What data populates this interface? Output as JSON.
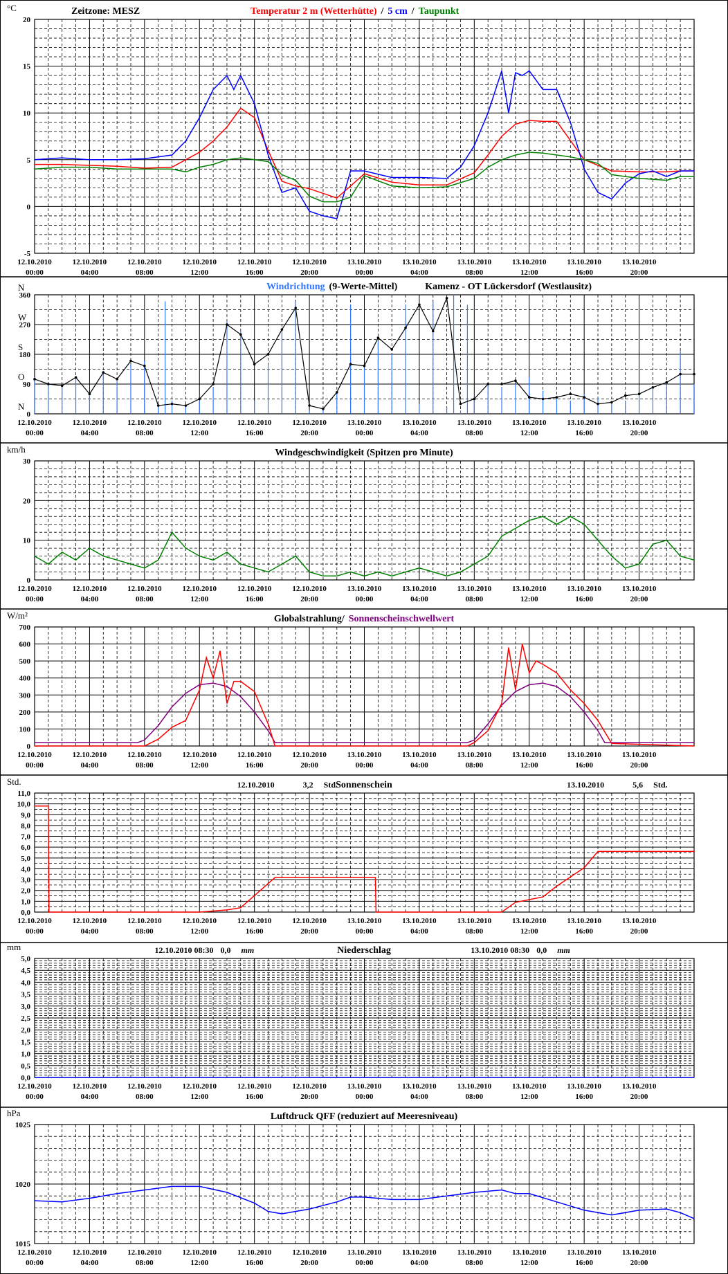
{
  "x_ticks": [
    {
      "date": "12.10.2010",
      "time": "00:00"
    },
    {
      "date": "12.10.2010",
      "time": "04:00"
    },
    {
      "date": "12.10.2010",
      "time": "08:00"
    },
    {
      "date": "12.10.2010",
      "time": "12:00"
    },
    {
      "date": "12.10.2010",
      "time": "16:00"
    },
    {
      "date": "12.10.2010",
      "time": "20:00"
    },
    {
      "date": "13.10.2010",
      "time": "00:00"
    },
    {
      "date": "13.10.2010",
      "time": "04:00"
    },
    {
      "date": "13.10.2010",
      "time": "08:00"
    },
    {
      "date": "13.10.2010",
      "time": "12:00"
    },
    {
      "date": "13.10.2010",
      "time": "16:00"
    },
    {
      "date": "13.10.2010",
      "time": "20:00"
    }
  ],
  "chart_data": [
    {
      "id": "temperature",
      "type": "line",
      "unit": "°C",
      "ylim": [
        -5,
        20
      ],
      "ytick_step": 5,
      "minor_step": 1,
      "ytick_labels": [
        "-5",
        "0",
        "5",
        "10",
        "15",
        "20"
      ],
      "grid": true,
      "title_parts": [
        {
          "text": "Zeitzone: MESZ",
          "color": "#000000"
        },
        {
          "text": "Temperatur 2 m (Wetterhütte)",
          "color": "#ff0000"
        },
        {
          "text": "/",
          "color": "#000000"
        },
        {
          "text": "5 cm",
          "color": "#0000ff"
        },
        {
          "text": "/",
          "color": "#000000"
        },
        {
          "text": "Taupunkt",
          "color": "#008000"
        }
      ],
      "series": [
        {
          "color": "#ff0000",
          "x": [
            0,
            2,
            4,
            6,
            8,
            10,
            12,
            13,
            14,
            15,
            16,
            17,
            18,
            19,
            20,
            22,
            24,
            26,
            28,
            30,
            32,
            33,
            34,
            35,
            36,
            37,
            38,
            40,
            42,
            44,
            46,
            47,
            48
          ],
          "y": [
            4.5,
            4.5,
            4.4,
            4.3,
            4.1,
            4.2,
            5.8,
            7,
            8.5,
            10.5,
            9.5,
            6,
            2.7,
            2.2,
            1.9,
            0.9,
            3.5,
            2.6,
            2.3,
            2.3,
            3.6,
            5.5,
            7.5,
            8.8,
            9.2,
            9.1,
            9.1,
            5,
            3.8,
            3.7,
            3.7,
            3.8,
            3.8
          ]
        },
        {
          "color": "#0000ff",
          "x": [
            0,
            2,
            4,
            6,
            8,
            10,
            11,
            12,
            13,
            14,
            14.5,
            15,
            16,
            17,
            18,
            19,
            20,
            21,
            22,
            23,
            24,
            26,
            28,
            30,
            31,
            32,
            33,
            34,
            34.5,
            35,
            35.5,
            36,
            37,
            38,
            39,
            40,
            41,
            42,
            43,
            44,
            45,
            46,
            47,
            48
          ],
          "y": [
            5,
            5.2,
            5,
            5,
            5.1,
            5.5,
            7,
            9.5,
            12.5,
            14,
            12.5,
            14,
            11,
            5.5,
            1.5,
            2,
            -0.5,
            -1,
            -1.3,
            3.8,
            3.8,
            3.1,
            3.1,
            3,
            4.2,
            6.5,
            10,
            14.5,
            10,
            14.3,
            14,
            14.5,
            12.5,
            12.5,
            9,
            4,
            1.5,
            0.8,
            2.5,
            3.5,
            3.8,
            3.2,
            3.8,
            3.8
          ]
        },
        {
          "color": "#008000",
          "x": [
            0,
            2,
            4,
            6,
            8,
            10,
            11,
            12,
            13,
            14,
            15,
            16,
            17,
            18,
            19,
            20,
            21,
            22,
            23,
            24,
            26,
            28,
            30,
            32,
            33,
            34,
            35,
            36,
            37,
            38,
            39,
            40,
            41,
            42,
            44,
            46,
            47,
            48
          ],
          "y": [
            4,
            4.2,
            4.2,
            4,
            4,
            4,
            3.7,
            4.2,
            4.5,
            5,
            5.2,
            5,
            4.8,
            3.4,
            2.8,
            1.1,
            0.5,
            0.5,
            1,
            3.3,
            2.2,
            2,
            2.1,
            3,
            4.2,
            5,
            5.5,
            5.8,
            5.7,
            5.5,
            5.3,
            5,
            4.6,
            3.4,
            3,
            2.8,
            3.2,
            3.2
          ]
        }
      ]
    },
    {
      "id": "wind-direction",
      "type": "scatter",
      "ylim": [
        0,
        360
      ],
      "ytick_step": 90,
      "minor_step": 45,
      "ytick_labels": [
        "0",
        "90",
        "180",
        "270",
        "360"
      ],
      "compass_labels": [
        {
          "text": "N",
          "value": 360
        },
        {
          "text": "W",
          "value": 270
        },
        {
          "text": "S",
          "value": 180
        },
        {
          "text": "O",
          "value": 90
        },
        {
          "text": "N",
          "value": 0
        }
      ],
      "grid": true,
      "title_parts": [
        {
          "text": "Windrichtung",
          "color": "#3377ff"
        },
        {
          "text": "(9-Werte-Mittel)",
          "color": "#000000"
        },
        {
          "text": "Kamenz - OT Lückersdorf (Westlausitz)",
          "color": "#000000"
        }
      ],
      "series": [
        {
          "color": "#3377ff",
          "x": [
            0,
            1,
            2,
            3,
            4,
            5,
            6,
            7,
            8,
            9,
            9.5,
            10,
            11,
            12,
            13,
            14,
            15,
            16,
            17,
            18,
            19,
            20,
            21,
            22,
            23,
            24,
            25,
            26,
            27,
            28,
            29,
            30,
            30.5,
            31,
            31.5,
            32,
            33,
            34,
            35,
            36,
            37,
            38,
            39,
            40,
            41,
            42,
            43,
            44,
            45,
            46,
            47,
            48
          ],
          "y": [
            110,
            95,
            80,
            110,
            60,
            130,
            100,
            150,
            160,
            20,
            340,
            40,
            20,
            40,
            80,
            280,
            250,
            40,
            150,
            250,
            340,
            10,
            20,
            60,
            330,
            140,
            220,
            180,
            330,
            30,
            340,
            20,
            360,
            10,
            330,
            50,
            90,
            80,
            90,
            110,
            70,
            50,
            40,
            60,
            50,
            30,
            40,
            60,
            80,
            100,
            190,
            90
          ]
        },
        {
          "color": "#000000",
          "x": [
            0,
            1,
            2,
            3,
            4,
            5,
            6,
            7,
            8,
            9,
            10,
            11,
            12,
            13,
            14,
            15,
            16,
            17,
            18,
            19,
            20,
            21,
            22,
            23,
            24,
            25,
            26,
            27,
            28,
            29,
            30,
            31,
            32,
            33,
            34,
            35,
            36,
            37,
            38,
            39,
            40,
            41,
            42,
            43,
            44,
            45,
            46,
            47,
            48
          ],
          "y": [
            105,
            90,
            85,
            110,
            60,
            125,
            105,
            160,
            145,
            25,
            30,
            25,
            45,
            90,
            270,
            240,
            150,
            180,
            255,
            320,
            25,
            15,
            65,
            150,
            145,
            230,
            195,
            260,
            330,
            250,
            350,
            30,
            45,
            90,
            90,
            100,
            50,
            45,
            50,
            60,
            50,
            30,
            35,
            55,
            60,
            80,
            95,
            120,
            120
          ]
        }
      ]
    },
    {
      "id": "wind-speed",
      "type": "line",
      "unit": "km/h",
      "ylim": [
        0,
        30
      ],
      "ytick_step": 10,
      "minor_step": 2,
      "ytick_labels": [
        "0",
        "10",
        "20",
        "30"
      ],
      "grid": true,
      "title_parts": [
        {
          "text": "Windgeschwindigkeit (Spitzen pro Minute)",
          "color": "#000000"
        }
      ],
      "series": [
        {
          "color": "#008000",
          "x": [
            0,
            1,
            2,
            3,
            4,
            5,
            6,
            7,
            8,
            9,
            10,
            11,
            12,
            13,
            14,
            15,
            16,
            17,
            18,
            19,
            20,
            21,
            22,
            23,
            24,
            25,
            26,
            27,
            28,
            29,
            30,
            31,
            32,
            33,
            34,
            35,
            36,
            37,
            38,
            39,
            40,
            41,
            42,
            43,
            44,
            45,
            46,
            47,
            48
          ],
          "y": [
            6,
            4,
            7,
            5,
            8,
            6,
            5,
            4,
            3,
            5,
            12,
            8,
            6,
            5,
            7,
            4,
            3,
            2,
            4,
            6,
            2,
            1,
            1,
            2,
            1,
            2,
            1,
            2,
            3,
            2,
            1,
            2,
            4,
            6,
            11,
            13,
            15,
            16,
            14,
            16,
            14,
            10,
            6,
            3,
            4,
            9,
            10,
            6,
            5
          ]
        }
      ]
    },
    {
      "id": "global-radiation",
      "type": "line",
      "unit": "W/m²",
      "ylim": [
        0,
        700
      ],
      "ytick_step": 100,
      "minor_step": 100,
      "ytick_labels": [
        "0",
        "100",
        "200",
        "300",
        "400",
        "500",
        "600",
        "700"
      ],
      "grid": true,
      "title_parts": [
        {
          "text": "Globalstrahlung/",
          "color": "#000000"
        },
        {
          "text": "Sonnenscheinschwellwert",
          "color": "#800080"
        }
      ],
      "series": [
        {
          "color": "#800080",
          "x": [
            0,
            7.5,
            8,
            9,
            10,
            11,
            12,
            13,
            14,
            15,
            16,
            17,
            17.5,
            31.5,
            32,
            33,
            34,
            35,
            36,
            37,
            38,
            39,
            40,
            41,
            41.5,
            48
          ],
          "y": [
            20,
            20,
            35,
            120,
            230,
            310,
            360,
            370,
            350,
            290,
            200,
            90,
            20,
            20,
            35,
            130,
            240,
            320,
            360,
            370,
            350,
            290,
            200,
            90,
            20,
            20
          ]
        },
        {
          "color": "#ff0000",
          "x": [
            0,
            8,
            9,
            10,
            11,
            12,
            12.5,
            13,
            13.5,
            14,
            14.5,
            15,
            16,
            17,
            17.5,
            31.5,
            32,
            33,
            34,
            34.5,
            35,
            35.5,
            36,
            36.5,
            37,
            38,
            39,
            40,
            41,
            42,
            48
          ],
          "y": [
            0,
            0,
            40,
            110,
            150,
            330,
            520,
            400,
            560,
            250,
            380,
            380,
            320,
            130,
            0,
            0,
            20,
            90,
            250,
            580,
            330,
            600,
            430,
            500,
            480,
            430,
            330,
            250,
            150,
            15,
            0
          ]
        }
      ]
    },
    {
      "id": "sunshine",
      "type": "line",
      "unit": "Std.",
      "ylim": [
        0,
        11
      ],
      "ytick_step": 1,
      "minor_step": 0.5,
      "ytick_labels": [
        "0,0",
        "1,0",
        "2,0",
        "3,0",
        "4,0",
        "5,0",
        "6,0",
        "7,0",
        "8,0",
        "9,0",
        "10,0",
        "11,0"
      ],
      "grid": true,
      "title_parts": [
        {
          "text": "Sonnenschein",
          "color": "#000000"
        }
      ],
      "annotations": [
        {
          "date": "12.10.2010",
          "value": "3,2",
          "unit": "Std.",
          "x": 16
        },
        {
          "date": "13.10.2010",
          "value": "5,6",
          "unit": "Std.",
          "x": 40
        }
      ],
      "series": [
        {
          "color": "#ff0000",
          "x": [
            0,
            1,
            1.05,
            12,
            14,
            15,
            17.5,
            24.8,
            24.85,
            34,
            35,
            37,
            38,
            40,
            41,
            48
          ],
          "y": [
            9.8,
            9.8,
            0,
            0,
            0.2,
            0.4,
            3.2,
            3.2,
            0,
            0,
            0.9,
            1.4,
            2.4,
            4.1,
            5.6,
            5.6
          ]
        }
      ]
    },
    {
      "id": "precipitation",
      "type": "line",
      "unit": "mm",
      "ylim": [
        0,
        5
      ],
      "ytick_step": 0.5,
      "minor_step": 0.1,
      "ytick_labels": [
        "0,0",
        "0,5",
        "1,0",
        "1,5",
        "2,0",
        "2,5",
        "3,0",
        "3,5",
        "4,0",
        "4,5",
        "5,0"
      ],
      "grid": true,
      "title_parts": [
        {
          "text": "Niederschlag",
          "color": "#000000"
        }
      ],
      "annotations": [
        {
          "date": "12.10.2010 08:30",
          "value": "0,0",
          "unit": "mm",
          "x": 10
        },
        {
          "date": "13.10.2010 08:30",
          "value": "0,0",
          "unit": "mm",
          "x": 33
        }
      ],
      "series": [
        {
          "color": "#0000ff",
          "x": [
            0,
            48
          ],
          "y": [
            0,
            0
          ]
        }
      ]
    },
    {
      "id": "air-pressure",
      "type": "line",
      "unit": "hPa",
      "ylim": [
        1015,
        1025
      ],
      "ytick_step": 5,
      "minor_step": 1,
      "ytick_labels": [
        "1015",
        "1020",
        "1025"
      ],
      "grid": true,
      "title_parts": [
        {
          "text": "Luftdruck QFF (reduziert auf Meeresniveau)",
          "color": "#000000"
        }
      ],
      "series": [
        {
          "color": "#0000ff",
          "x": [
            0,
            2,
            4,
            6,
            8,
            10,
            12,
            14,
            16,
            17,
            18,
            20,
            22,
            23,
            24,
            26,
            28,
            30,
            32,
            34,
            35,
            36,
            38,
            40,
            42,
            44,
            46,
            47,
            48
          ],
          "y": [
            1018.6,
            1018.5,
            1018.8,
            1019.2,
            1019.5,
            1019.8,
            1019.8,
            1019.3,
            1018.4,
            1017.7,
            1017.5,
            1017.9,
            1018.5,
            1018.9,
            1018.9,
            1018.7,
            1018.7,
            1019,
            1019.3,
            1019.5,
            1019.2,
            1019.2,
            1018.5,
            1017.8,
            1017.4,
            1017.8,
            1017.9,
            1017.6,
            1017.1
          ]
        }
      ]
    }
  ]
}
